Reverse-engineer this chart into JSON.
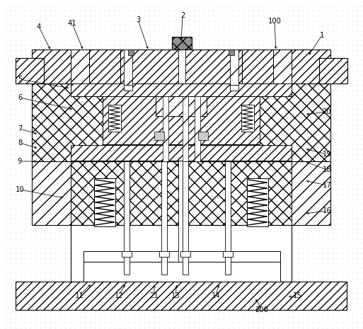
{
  "fig_width": 5.13,
  "fig_height": 4.65,
  "dpi": 100,
  "labels": [
    [
      "4",
      55,
      38,
      72,
      72
    ],
    [
      "41",
      102,
      33,
      118,
      72
    ],
    [
      "3",
      195,
      28,
      210,
      72
    ],
    [
      "2",
      258,
      22,
      256,
      60
    ],
    [
      "100",
      388,
      30,
      390,
      72
    ],
    [
      "1",
      455,
      50,
      435,
      80
    ],
    [
      "5",
      28,
      112,
      100,
      125
    ],
    [
      "6",
      28,
      138,
      105,
      155
    ],
    [
      "7",
      28,
      182,
      55,
      190
    ],
    [
      "8",
      28,
      202,
      55,
      210
    ],
    [
      "9",
      28,
      228,
      55,
      228
    ],
    [
      "10",
      28,
      268,
      92,
      280
    ],
    [
      "20",
      462,
      158,
      430,
      162
    ],
    [
      "19",
      462,
      218,
      430,
      210
    ],
    [
      "18",
      462,
      240,
      430,
      228
    ],
    [
      "17",
      462,
      262,
      430,
      255
    ],
    [
      "16",
      462,
      298,
      430,
      302
    ],
    [
      "11",
      112,
      418,
      130,
      400
    ],
    [
      "12",
      168,
      418,
      178,
      400
    ],
    [
      "21",
      218,
      418,
      218,
      400
    ],
    [
      "13",
      248,
      418,
      250,
      400
    ],
    [
      "14",
      305,
      418,
      310,
      400
    ],
    [
      "200",
      370,
      438,
      360,
      420
    ],
    [
      "15",
      420,
      418,
      405,
      420
    ]
  ]
}
